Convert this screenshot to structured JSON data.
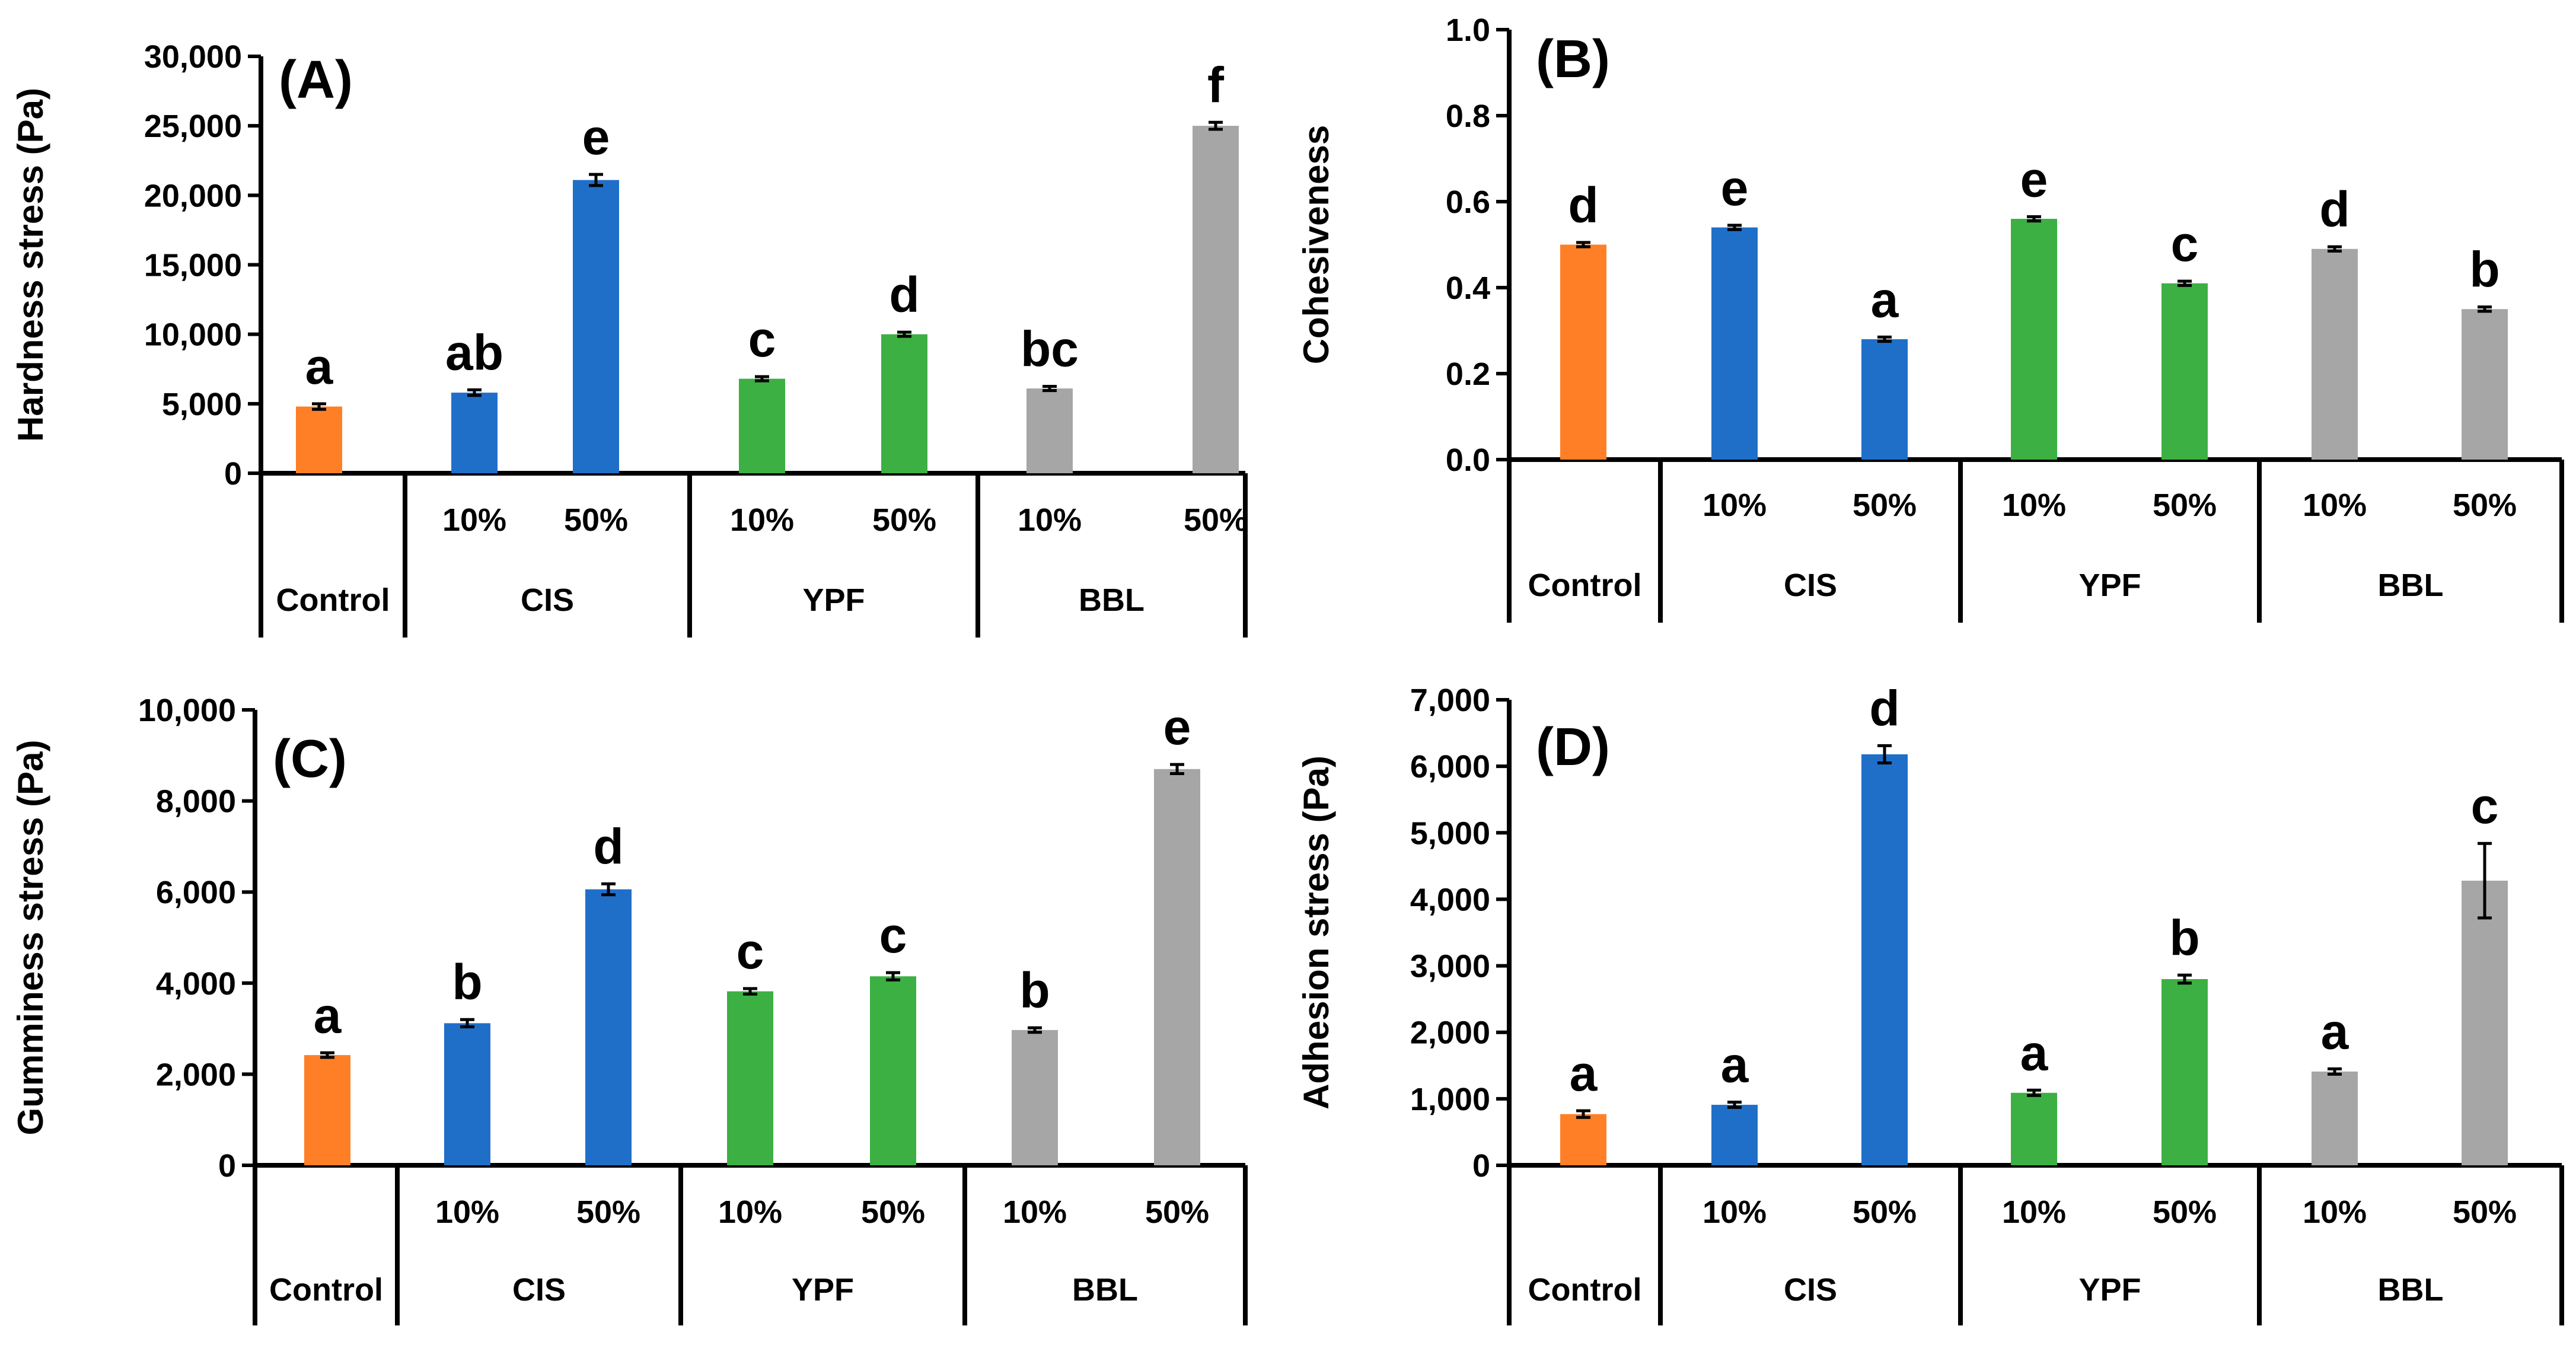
{
  "chart_data": [
    {
      "type": "bar",
      "panel": "(A)",
      "ylabel": "Hardness stress (Pa)",
      "ylim": [
        0,
        30000
      ],
      "ytick_labels": [
        "0",
        "5,000",
        "10,000",
        "15,000",
        "20,000",
        "25,000",
        "30,000"
      ],
      "groups": [
        "Control",
        "CIS",
        "YPF",
        "BBL"
      ],
      "levels": [
        "10%",
        "50%"
      ],
      "bars": [
        {
          "group": "Control",
          "level": "",
          "value": 4800,
          "error": 200,
          "sig": "a",
          "color": "#FF7F27"
        },
        {
          "group": "CIS",
          "level": "10%",
          "value": 5800,
          "error": 200,
          "sig": "ab",
          "color": "#1F6FC9"
        },
        {
          "group": "CIS",
          "level": "50%",
          "value": 21100,
          "error": 400,
          "sig": "e",
          "color": "#1F6FC9"
        },
        {
          "group": "YPF",
          "level": "10%",
          "value": 6800,
          "error": 150,
          "sig": "c",
          "color": "#3CB043"
        },
        {
          "group": "YPF",
          "level": "50%",
          "value": 10000,
          "error": 150,
          "sig": "d",
          "color": "#3CB043"
        },
        {
          "group": "BBL",
          "level": "10%",
          "value": 6100,
          "error": 150,
          "sig": "bc",
          "color": "#A6A6A6"
        },
        {
          "group": "BBL",
          "level": "50%",
          "value": 25000,
          "error": 250,
          "sig": "f",
          "color": "#A6A6A6"
        }
      ]
    },
    {
      "type": "bar",
      "panel": "(B)",
      "ylabel": "Cohesiveness",
      "ylim": [
        0,
        1.0
      ],
      "ytick_labels": [
        "0.0",
        "0.2",
        "0.4",
        "0.6",
        "0.8",
        "1.0"
      ],
      "groups": [
        "Control",
        "CIS",
        "YPF",
        "BBL"
      ],
      "levels": [
        "10%",
        "50%"
      ],
      "bars": [
        {
          "group": "Control",
          "level": "",
          "value": 0.5,
          "error": 0.005,
          "sig": "d",
          "color": "#FF7F27"
        },
        {
          "group": "CIS",
          "level": "10%",
          "value": 0.54,
          "error": 0.005,
          "sig": "e",
          "color": "#1F6FC9"
        },
        {
          "group": "CIS",
          "level": "50%",
          "value": 0.28,
          "error": 0.005,
          "sig": "a",
          "color": "#1F6FC9"
        },
        {
          "group": "YPF",
          "level": "10%",
          "value": 0.56,
          "error": 0.005,
          "sig": "e",
          "color": "#3CB043"
        },
        {
          "group": "YPF",
          "level": "50%",
          "value": 0.41,
          "error": 0.005,
          "sig": "c",
          "color": "#3CB043"
        },
        {
          "group": "BBL",
          "level": "10%",
          "value": 0.49,
          "error": 0.005,
          "sig": "d",
          "color": "#A6A6A6"
        },
        {
          "group": "BBL",
          "level": "50%",
          "value": 0.35,
          "error": 0.005,
          "sig": "b",
          "color": "#A6A6A6"
        }
      ]
    },
    {
      "type": "bar",
      "panel": "(C)",
      "ylabel": "Gumminess stress (Pa)",
      "ylim": [
        0,
        10000
      ],
      "ytick_labels": [
        "0",
        "2,000",
        "4,000",
        "6,000",
        "8,000",
        "10,000"
      ],
      "groups": [
        "Control",
        "CIS",
        "YPF",
        "BBL"
      ],
      "levels": [
        "10%",
        "50%"
      ],
      "bars": [
        {
          "group": "Control",
          "level": "",
          "value": 2420,
          "error": 50,
          "sig": "a",
          "color": "#FF7F27"
        },
        {
          "group": "CIS",
          "level": "10%",
          "value": 3120,
          "error": 80,
          "sig": "b",
          "color": "#1F6FC9"
        },
        {
          "group": "CIS",
          "level": "50%",
          "value": 6060,
          "error": 120,
          "sig": "d",
          "color": "#1F6FC9"
        },
        {
          "group": "YPF",
          "level": "10%",
          "value": 3820,
          "error": 60,
          "sig": "c",
          "color": "#3CB043"
        },
        {
          "group": "YPF",
          "level": "50%",
          "value": 4150,
          "error": 80,
          "sig": "c",
          "color": "#3CB043"
        },
        {
          "group": "BBL",
          "level": "10%",
          "value": 2970,
          "error": 50,
          "sig": "b",
          "color": "#A6A6A6"
        },
        {
          "group": "BBL",
          "level": "50%",
          "value": 8700,
          "error": 100,
          "sig": "e",
          "color": "#A6A6A6"
        }
      ]
    },
    {
      "type": "bar",
      "panel": "(D)",
      "ylabel": "Adhesion stress (Pa)",
      "ylim": [
        0,
        7000
      ],
      "ytick_labels": [
        "0",
        "1,000",
        "2,000",
        "3,000",
        "4,000",
        "5,000",
        "6,000",
        "7,000"
      ],
      "groups": [
        "Control",
        "CIS",
        "YPF",
        "BBL"
      ],
      "levels": [
        "10%",
        "50%"
      ],
      "bars": [
        {
          "group": "Control",
          "level": "",
          "value": 770,
          "error": 50,
          "sig": "a",
          "color": "#FF7F27"
        },
        {
          "group": "CIS",
          "level": "10%",
          "value": 910,
          "error": 40,
          "sig": "a",
          "color": "#1F6FC9"
        },
        {
          "group": "CIS",
          "level": "50%",
          "value": 6180,
          "error": 130,
          "sig": "d",
          "color": "#1F6FC9"
        },
        {
          "group": "YPF",
          "level": "10%",
          "value": 1090,
          "error": 40,
          "sig": "a",
          "color": "#3CB043"
        },
        {
          "group": "YPF",
          "level": "50%",
          "value": 2800,
          "error": 60,
          "sig": "b",
          "color": "#3CB043"
        },
        {
          "group": "BBL",
          "level": "10%",
          "value": 1410,
          "error": 40,
          "sig": "a",
          "color": "#A6A6A6"
        },
        {
          "group": "BBL",
          "level": "50%",
          "value": 4280,
          "error": 560,
          "sig": "c",
          "color": "#A6A6A6"
        }
      ]
    }
  ]
}
